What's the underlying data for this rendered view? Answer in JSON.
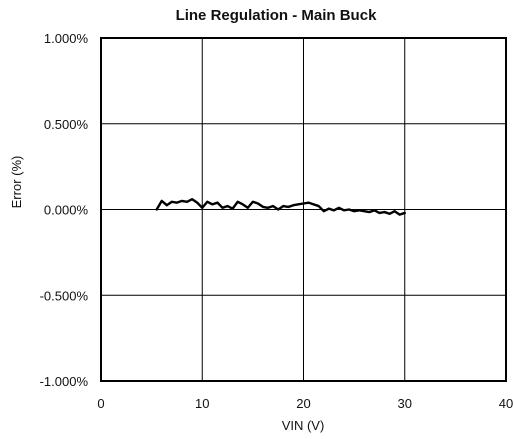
{
  "chart_data": {
    "type": "line",
    "title": "Line Regulation - Main Buck",
    "xlabel": "VIN (V)",
    "ylabel": "Error (%)",
    "xlim": [
      0,
      40
    ],
    "ylim": [
      -1.0,
      1.0
    ],
    "x_ticks": [
      0,
      10,
      20,
      30,
      40
    ],
    "x_tick_labels": [
      "0",
      "10",
      "20",
      "30",
      "40"
    ],
    "y_ticks": [
      1.0,
      0.5,
      0.0,
      -0.5,
      -1.0
    ],
    "y_tick_labels": [
      "1.000%",
      "0.500%",
      "0.000%",
      "-0.500%",
      "-1.000%"
    ],
    "grid": true,
    "legend": "none",
    "series": [
      {
        "color": "#000000",
        "x": [
          5.5,
          6.0,
          6.5,
          7.0,
          7.5,
          8.0,
          8.5,
          9.0,
          9.5,
          10.0,
          10.5,
          11.0,
          11.5,
          12.0,
          12.5,
          13.0,
          13.5,
          14.0,
          14.5,
          15.0,
          15.5,
          16.0,
          16.5,
          17.0,
          17.5,
          18.0,
          18.5,
          19.0,
          19.5,
          20.0,
          20.5,
          21.0,
          21.5,
          22.0,
          22.5,
          23.0,
          23.5,
          24.0,
          24.5,
          25.0,
          25.5,
          26.0,
          26.5,
          27.0,
          27.5,
          28.0,
          28.5,
          29.0,
          29.5,
          30.0
        ],
        "y": [
          0.0,
          0.05,
          0.025,
          0.045,
          0.04,
          0.05,
          0.045,
          0.06,
          0.04,
          0.01,
          0.045,
          0.03,
          0.04,
          0.01,
          0.02,
          0.005,
          0.045,
          0.03,
          0.01,
          0.045,
          0.035,
          0.015,
          0.01,
          0.02,
          0.0,
          0.02,
          0.015,
          0.025,
          0.03,
          0.035,
          0.04,
          0.03,
          0.02,
          -0.01,
          0.005,
          -0.005,
          0.01,
          -0.005,
          0.0,
          -0.01,
          -0.005,
          -0.01,
          -0.015,
          -0.005,
          -0.02,
          -0.015,
          -0.025,
          -0.01,
          -0.03,
          -0.02
        ]
      }
    ]
  }
}
